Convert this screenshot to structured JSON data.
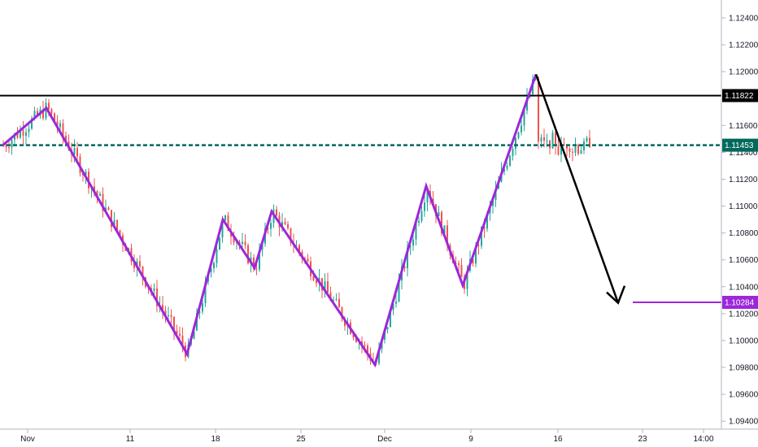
{
  "chart_data": {
    "type": "candlestick",
    "y_axis": {
      "position": "right",
      "range": [
        1.0931,
        1.1258
      ],
      "ticks": [
        "1.12400",
        "1.12200",
        "1.12000",
        "1.11800",
        "1.11600",
        "1.11400",
        "1.11200",
        "1.11000",
        "1.10800",
        "1.10600",
        "1.10400",
        "1.10200",
        "1.10000",
        "1.09800",
        "1.09600",
        "1.09400"
      ]
    },
    "x_axis": {
      "labels": [
        "Nov",
        "11",
        "18",
        "25",
        "Dec",
        "9",
        "16",
        "23",
        "14:00"
      ]
    },
    "price_tags": [
      {
        "name": "resistance",
        "value": "1.11822",
        "bg": "#000000",
        "fg": "#ffffff"
      },
      {
        "name": "current",
        "value": "1.11453",
        "bg": "#00695c",
        "fg": "#ffffff"
      },
      {
        "name": "target",
        "value": "1.10284",
        "bg": "#9c27d9",
        "fg": "#ffffff"
      }
    ],
    "horizontal_lines": [
      {
        "name": "resistance-line",
        "price": 1.11822,
        "color": "#000000",
        "style": "solid"
      },
      {
        "name": "current-price-line",
        "price": 1.11453,
        "color": "#00695c",
        "style": "dashed"
      },
      {
        "name": "target-line",
        "price": 1.10284,
        "color": "#9c27d9",
        "style": "solid"
      }
    ],
    "zigzag_prices": [
      1.1145,
      1.1173,
      1.099,
      1.109,
      1.1054,
      1.1096,
      1.0982,
      1.1115,
      1.1041,
      1.1198
    ],
    "projection": {
      "from": 1.1198,
      "to": 1.1028
    },
    "colors": {
      "up": "#26a69a",
      "down": "#ef5350",
      "zigzag": "#9c27d9",
      "projection": "#000000",
      "grid": "#e0e3eb"
    }
  }
}
